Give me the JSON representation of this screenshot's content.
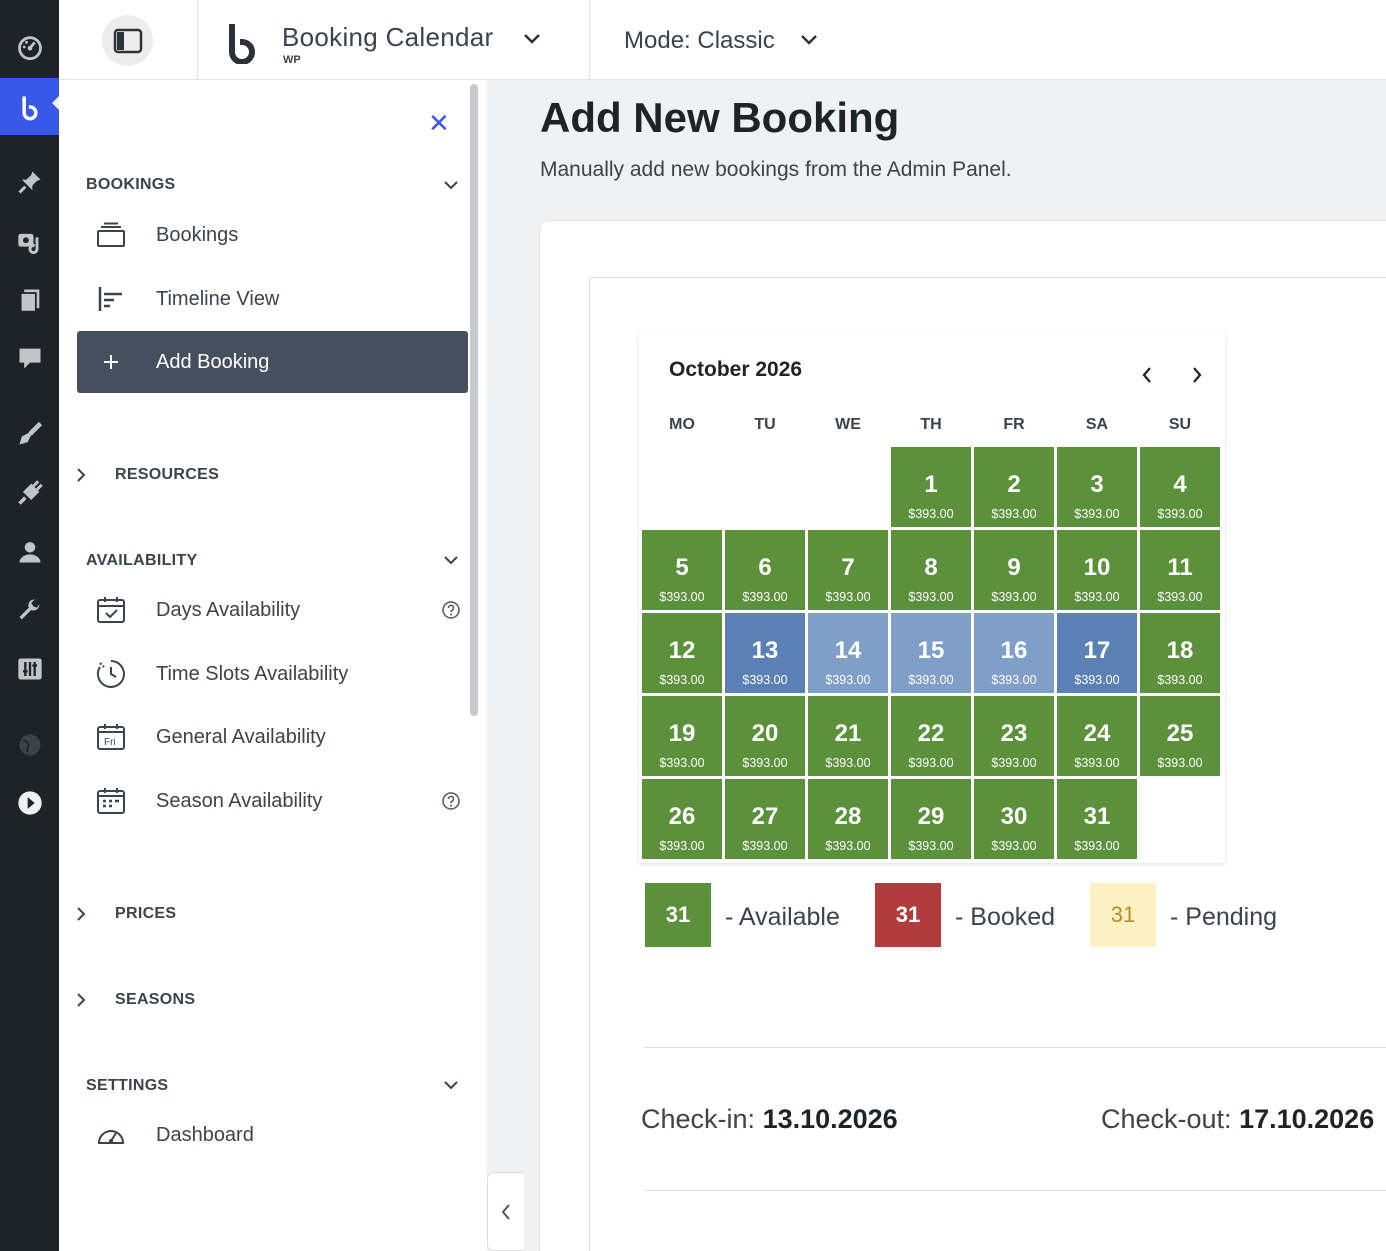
{
  "header": {
    "app_title": "Booking Calendar",
    "app_subtitle": "WP",
    "mode_label": "Mode: Classic"
  },
  "sidebar": {
    "sections": {
      "bookings": "BOOKINGS",
      "resources": "RESOURCES",
      "availability": "AVAILABILITY",
      "prices": "PRICES",
      "seasons": "SEASONS",
      "settings": "SETTINGS"
    },
    "items": {
      "bookings": "Bookings",
      "timeline": "Timeline View",
      "add_booking": "Add Booking",
      "days_availability": "Days Availability",
      "time_slots": "Time Slots Availability",
      "general_availability": "General Availability",
      "season_availability": "Season Availability",
      "dashboard": "Dashboard"
    },
    "general_icon_text": "Fri"
  },
  "main": {
    "title": "Add New Booking",
    "description": "Manually add new bookings from the Admin Panel."
  },
  "calendar": {
    "month_label": "October 2026",
    "weekdays": [
      "MO",
      "TU",
      "WE",
      "TH",
      "FR",
      "SA",
      "SU"
    ],
    "first_weekday_index": 3,
    "days_in_month": 31,
    "price": "$393.00",
    "selected_range": [
      13,
      17
    ]
  },
  "legend": {
    "sample_day": "31",
    "available": "- Available",
    "booked": "- Booked",
    "pending": "- Pending"
  },
  "dates": {
    "checkin_label": "Check-in:",
    "checkin_value": "13.10.2026",
    "checkout_label": "Check-out:",
    "checkout_value": "17.10.2026"
  },
  "colors": {
    "available": "#5c913b",
    "range_edge": "#5b80b5",
    "range_mid": "#7f9fc9",
    "booked": "#b23b3b",
    "pending_bg": "#fcf1c3",
    "pending_text": "#b98c2a",
    "accent": "#3858e9",
    "selected_item": "#454f5e"
  }
}
